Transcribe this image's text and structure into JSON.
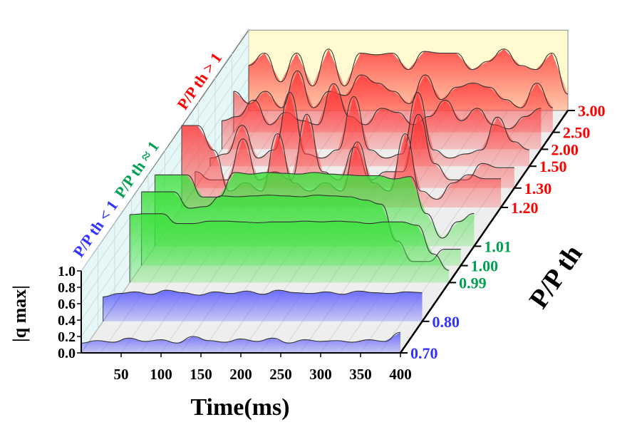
{
  "chart_data": {
    "type": "area",
    "subtype": "3d-waterfall",
    "xlabel": "Time(ms)",
    "ylabel": "P/P th",
    "zlabel": "|q max|",
    "xticks": [
      "50",
      "100",
      "150",
      "200",
      "250",
      "300",
      "350",
      "400"
    ],
    "zticks": [
      "0.0",
      "0.2",
      "0.4",
      "0.6",
      "0.8",
      "1.0"
    ],
    "xlim": [
      0,
      400
    ],
    "zlim": [
      0,
      1.0
    ],
    "x": [
      0,
      20,
      40,
      60,
      80,
      100,
      120,
      140,
      160,
      180,
      200,
      220,
      240,
      260,
      280,
      300,
      320,
      340,
      360,
      380,
      400
    ],
    "regions": [
      {
        "label": "P/P th < 1",
        "color": "#3333ff"
      },
      {
        "label": "P/P th ≈ 1",
        "color": "#00a050"
      },
      {
        "label": "P/P th > 1",
        "color": "#ff0000"
      }
    ],
    "series": [
      {
        "label": "3.00",
        "color": "#ff0000",
        "fill": "#ff3a3a",
        "values": [
          0.55,
          0.7,
          0.35,
          0.7,
          0.3,
          0.75,
          0.3,
          0.7,
          0.68,
          0.7,
          0.5,
          0.72,
          0.7,
          0.7,
          0.5,
          0.6,
          0.75,
          0.55,
          0.5,
          0.7,
          0.2
        ]
      },
      {
        "label": "2.50",
        "color": "#ff0000",
        "fill": "#ff3a3a",
        "values": [
          0.5,
          0.35,
          0.5,
          0.3,
          0.75,
          0.3,
          0.5,
          0.45,
          0.7,
          0.6,
          0.5,
          0.35,
          0.7,
          0.4,
          0.55,
          0.6,
          0.55,
          0.4,
          0.3,
          0.6,
          0.3
        ]
      },
      {
        "label": "2.00",
        "color": "#ff0000",
        "fill": "#ff3a3a",
        "values": [
          0.35,
          0.4,
          0.6,
          0.3,
          0.45,
          0.35,
          0.3,
          0.8,
          0.4,
          0.3,
          0.5,
          0.45,
          0.3,
          0.4,
          0.6,
          0.35,
          0.5,
          0.3,
          0.25,
          0.4,
          0.5
        ]
      },
      {
        "label": "1.50",
        "color": "#ff0000",
        "fill": "#ff3a3a",
        "values": [
          0.1,
          0.15,
          0.5,
          0.1,
          0.2,
          0.9,
          0.15,
          0.1,
          0.2,
          0.85,
          0.2,
          0.1,
          0.15,
          0.9,
          0.2,
          0.1,
          0.15,
          0.2,
          0.6,
          0.3,
          0.2
        ]
      },
      {
        "label": "1.30",
        "color": "#ff0000",
        "fill": "#ff3a3a",
        "values": [
          0.2,
          0.1,
          0.1,
          0.6,
          0.1,
          0.2,
          0.1,
          0.9,
          0.2,
          0.1,
          0.5,
          0.1,
          0.2,
          0.2,
          0.9,
          0.3,
          0.1,
          0.1,
          0.3,
          0.25,
          0.25
        ]
      },
      {
        "label": "1.20",
        "color": "#ff0000",
        "fill": "#ff3a3a",
        "values": [
          1.0,
          1.0,
          0.7,
          0.2,
          0.3,
          0.2,
          0.9,
          0.3,
          0.2,
          0.3,
          0.2,
          0.8,
          0.3,
          0.2,
          0.9,
          0.2,
          0.1,
          0.3,
          0.4,
          0.35,
          0.35
        ]
      },
      {
        "label": "1.01",
        "color": "#00a050",
        "fill": "#3de03d",
        "values": [
          0.87,
          0.87,
          0.87,
          0.6,
          0.6,
          0.9,
          0.88,
          0.9,
          0.89,
          0.88,
          0.9,
          0.88,
          0.87,
          0.86,
          0.86,
          0.82,
          0.85,
          0.4,
          0.1,
          0.3,
          0.4
        ]
      },
      {
        "label": "1.00",
        "color": "#00a050",
        "fill": "#3de03d",
        "values": [
          0.9,
          0.9,
          0.9,
          0.7,
          0.72,
          0.85,
          0.84,
          0.85,
          0.86,
          0.85,
          0.84,
          0.86,
          0.85,
          0.84,
          0.8,
          0.75,
          0.3,
          0.05,
          0.05,
          0.2,
          0.2
        ]
      },
      {
        "label": "0.99",
        "color": "#00a050",
        "fill": "#3de03d",
        "values": [
          0.83,
          0.84,
          0.84,
          0.72,
          0.72,
          0.75,
          0.75,
          0.74,
          0.73,
          0.74,
          0.74,
          0.75,
          0.74,
          0.75,
          0.74,
          0.72,
          0.74,
          0.74,
          0.7,
          0.35,
          0.15
        ]
      },
      {
        "label": "0.80",
        "color": "#3333ff",
        "fill": "#5555ff",
        "values": [
          0.3,
          0.34,
          0.36,
          0.33,
          0.38,
          0.35,
          0.32,
          0.36,
          0.34,
          0.37,
          0.33,
          0.38,
          0.35,
          0.34,
          0.36,
          0.33,
          0.37,
          0.35,
          0.34,
          0.36,
          0.35
        ]
      },
      {
        "label": "0.70",
        "color": "#3333ff",
        "fill": "#5555ff",
        "values": [
          0.12,
          0.15,
          0.13,
          0.18,
          0.14,
          0.16,
          0.12,
          0.2,
          0.15,
          0.13,
          0.17,
          0.14,
          0.18,
          0.12,
          0.16,
          0.14,
          0.15,
          0.13,
          0.16,
          0.14,
          0.25
        ]
      }
    ],
    "grid": true,
    "colors": {
      "back_wall": "#fffad0",
      "side_wall": "#e6f7f7",
      "floor": "#eeeeee"
    }
  }
}
